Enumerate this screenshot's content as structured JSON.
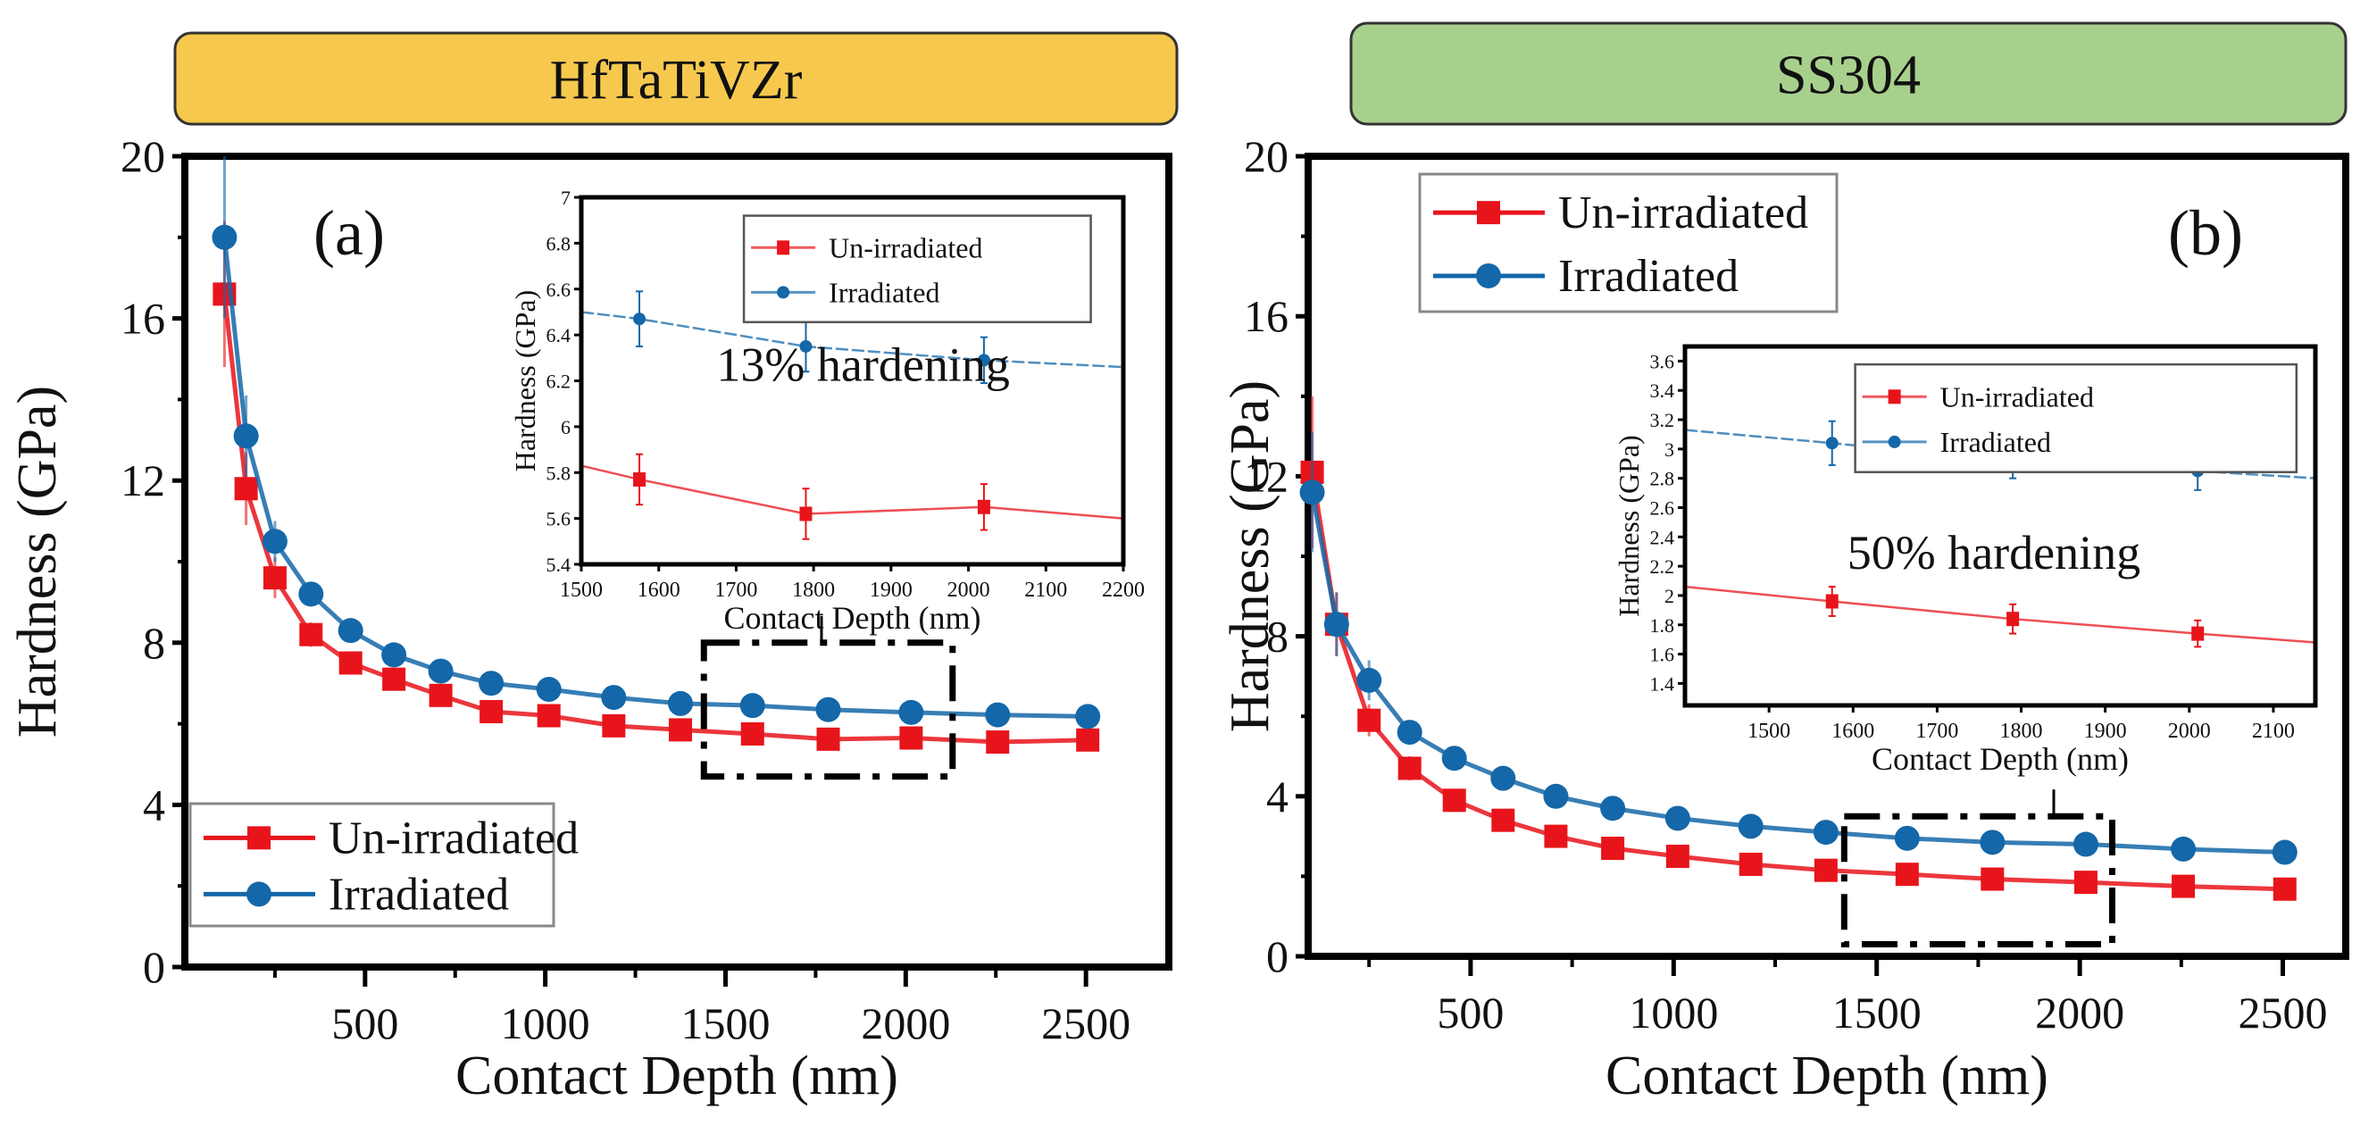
{
  "chart_data": [
    {
      "type": "line",
      "panel_label": "(a)",
      "header": "HfTaTiVZr",
      "header_color": "#f6c94e",
      "xlabel": "Contact Depth (nm)",
      "ylabel": "Hardness (GPa)",
      "xlim": [
        0,
        2730
      ],
      "ylim": [
        0,
        20
      ],
      "xticks": [
        500,
        1000,
        1500,
        2000,
        2500
      ],
      "yticks": [
        0,
        4,
        8,
        12,
        16,
        20
      ],
      "legend_position": "bottom-left",
      "x": [
        110,
        170,
        250,
        350,
        460,
        580,
        710,
        850,
        1010,
        1190,
        1375,
        1575,
        1785,
        2015,
        2255,
        2505
      ],
      "series": [
        {
          "name": "Un-irradiated",
          "color": "#e8141b",
          "marker": "square",
          "values": [
            16.6,
            11.8,
            9.6,
            8.2,
            7.5,
            7.1,
            6.7,
            6.3,
            6.2,
            5.95,
            5.85,
            5.75,
            5.62,
            5.65,
            5.55,
            5.6
          ],
          "errors": [
            1.8,
            0.9,
            0.5,
            0.3,
            0.2,
            0.15,
            0.12,
            0.1,
            0.1,
            0.1,
            0.1,
            0.1,
            0.1,
            0.1,
            0.1,
            0.1
          ]
        },
        {
          "name": "Irradiated",
          "color": "#1467a8",
          "marker": "circle",
          "values": [
            18.0,
            13.1,
            10.5,
            9.2,
            8.3,
            7.7,
            7.3,
            7.0,
            6.85,
            6.65,
            6.5,
            6.45,
            6.35,
            6.28,
            6.22,
            6.18
          ],
          "errors": [
            2.0,
            1.0,
            0.5,
            0.3,
            0.2,
            0.15,
            0.12,
            0.1,
            0.1,
            0.1,
            0.1,
            0.1,
            0.1,
            0.1,
            0.1,
            0.1
          ]
        }
      ],
      "zoom_box": {
        "x": [
          1440,
          2130
        ],
        "y": [
          4.7,
          8.0
        ]
      },
      "inset": {
        "xlabel": "Contact Depth (nm)",
        "ylabel": "Hardness (GPa)",
        "xlim": [
          1500,
          2200
        ],
        "ylim": [
          5.4,
          7.0
        ],
        "xticks": [
          1500,
          1600,
          1700,
          1800,
          1900,
          2000,
          2100,
          2200
        ],
        "yticks": [
          5.4,
          5.6,
          5.8,
          6.0,
          6.2,
          6.4,
          6.6,
          6.8,
          7.0
        ],
        "annotation": "13% hardening",
        "legend_position": "top-right",
        "series": [
          {
            "name": "Un-irradiated",
            "color": "#e8141b",
            "x": [
              1500,
              1575,
              1790,
              2020,
              2200
            ],
            "values": [
              5.83,
              5.77,
              5.62,
              5.65,
              5.6
            ],
            "errors": [
              0,
              0.11,
              0.11,
              0.1,
              0
            ],
            "markers": [
              false,
              true,
              true,
              true,
              false
            ]
          },
          {
            "name": "Irradiated",
            "color": "#1467a8",
            "x": [
              1500,
              1575,
              1790,
              2020,
              2200
            ],
            "values": [
              6.5,
              6.47,
              6.35,
              6.29,
              6.26
            ],
            "errors": [
              0,
              0.12,
              0.11,
              0.1,
              0
            ],
            "markers": [
              false,
              true,
              true,
              true,
              false
            ]
          }
        ]
      }
    },
    {
      "type": "line",
      "panel_label": "(b)",
      "header": "SS304",
      "header_color": "#a8d08d",
      "xlabel": "Contact Depth (nm)",
      "ylabel": "Hardness (GPa)",
      "xlim": [
        100,
        2655
      ],
      "ylim": [
        0,
        20
      ],
      "xticks": [
        500,
        1000,
        1500,
        2000,
        2500
      ],
      "yticks": [
        0,
        4,
        8,
        12,
        16,
        20
      ],
      "legend_position": "top-left",
      "x": [
        110,
        170,
        250,
        350,
        460,
        580,
        710,
        850,
        1010,
        1190,
        1375,
        1575,
        1785,
        2015,
        2255,
        2505
      ],
      "series": [
        {
          "name": "Un-irradiated",
          "color": "#e8141b",
          "marker": "square",
          "values": [
            12.1,
            8.3,
            5.9,
            4.7,
            3.9,
            3.4,
            3.0,
            2.7,
            2.5,
            2.3,
            2.15,
            2.05,
            1.93,
            1.85,
            1.75,
            1.68
          ],
          "errors": [
            1.9,
            0.8,
            0.4,
            0.3,
            0.2,
            0.15,
            0.12,
            0.1,
            0.1,
            0.1,
            0.1,
            0.1,
            0.1,
            0.1,
            0.1,
            0.1
          ]
        },
        {
          "name": "Irradiated",
          "color": "#1467a8",
          "marker": "circle",
          "values": [
            11.6,
            8.3,
            6.9,
            5.6,
            4.95,
            4.45,
            4.0,
            3.7,
            3.45,
            3.25,
            3.1,
            2.95,
            2.85,
            2.8,
            2.68,
            2.6
          ],
          "errors": [
            1.5,
            0.8,
            0.5,
            0.3,
            0.2,
            0.15,
            0.12,
            0.1,
            0.1,
            0.1,
            0.1,
            0.1,
            0.1,
            0.1,
            0.1,
            0.1
          ]
        }
      ],
      "zoom_box": {
        "x": [
          1420,
          2080
        ],
        "y": [
          0.3,
          3.5
        ]
      },
      "inset": {
        "xlabel": "Contact Depth (nm)",
        "ylabel": "Hardness (GPa)",
        "xlim": [
          1400,
          2150
        ],
        "ylim": [
          1.25,
          3.7
        ],
        "xticks": [
          1500,
          1600,
          1700,
          1800,
          1900,
          2000,
          2100
        ],
        "yticks": [
          1.4,
          1.6,
          1.8,
          2.0,
          2.2,
          2.4,
          2.6,
          2.8,
          3.0,
          3.2,
          3.4,
          3.6
        ],
        "annotation": "50% hardening",
        "legend_position": "top-right",
        "series": [
          {
            "name": "Un-irradiated",
            "color": "#e8141b",
            "x": [
              1400,
              1575,
              1790,
              2010,
              2150
            ],
            "values": [
              2.06,
              1.96,
              1.84,
              1.74,
              1.68
            ],
            "errors": [
              0,
              0.1,
              0.1,
              0.09,
              0
            ],
            "markers": [
              false,
              true,
              true,
              true,
              false
            ]
          },
          {
            "name": "Irradiated",
            "color": "#1467a8",
            "x": [
              1400,
              1575,
              1790,
              2010,
              2150
            ],
            "values": [
              3.13,
              3.04,
              2.92,
              2.85,
              2.8
            ],
            "errors": [
              0,
              0.15,
              0.12,
              0.13,
              0
            ],
            "markers": [
              false,
              true,
              true,
              true,
              false
            ]
          }
        ]
      }
    }
  ]
}
